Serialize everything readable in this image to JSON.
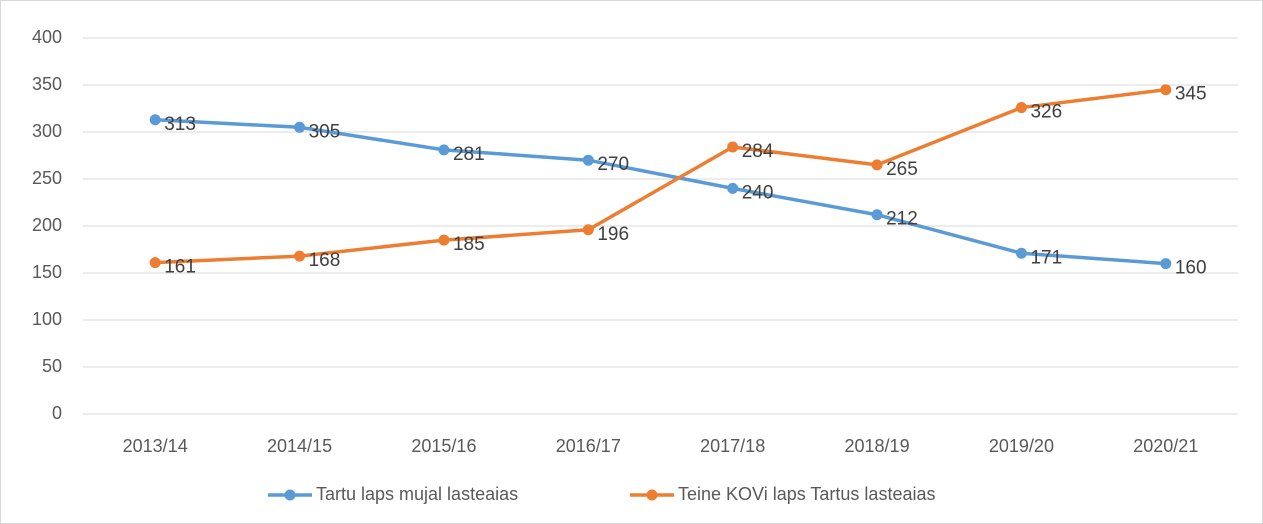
{
  "chart_data": {
    "type": "line",
    "categories": [
      "2013/14",
      "2014/15",
      "2015/16",
      "2016/17",
      "2017/18",
      "2018/19",
      "2019/20",
      "2020/21"
    ],
    "series": [
      {
        "name": "Tartu laps mujal lasteaias",
        "color": "#5b9bd5",
        "values": [
          313,
          305,
          281,
          270,
          240,
          212,
          171,
          160
        ]
      },
      {
        "name": "Teine KOVi laps Tartus lasteaias",
        "color": "#ed7d31",
        "values": [
          161,
          168,
          185,
          196,
          284,
          265,
          326,
          345
        ]
      }
    ],
    "ylim": [
      0,
      400
    ],
    "yticks": [
      0,
      50,
      100,
      150,
      200,
      250,
      300,
      350,
      400
    ],
    "grid": true,
    "legend": "bottom"
  }
}
